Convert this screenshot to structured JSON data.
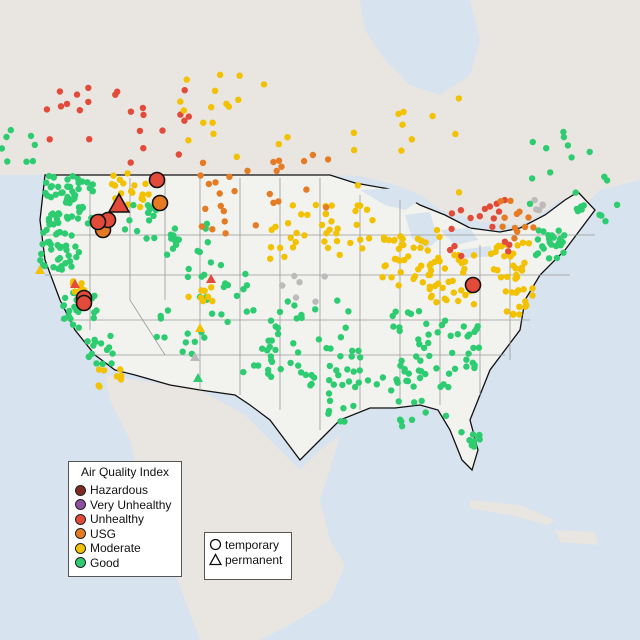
{
  "legend_aqi": {
    "title": "Air Quality Index",
    "items": [
      {
        "label": "Hazardous",
        "color": "#7e2a22"
      },
      {
        "label": "Very Unhealthy",
        "color": "#8e4fa3"
      },
      {
        "label": "Unhealthy",
        "color": "#e24b3a"
      },
      {
        "label": "USG",
        "color": "#e57c23"
      },
      {
        "label": "Moderate",
        "color": "#f2c100"
      },
      {
        "label": "Good",
        "color": "#2ecc71"
      }
    ]
  },
  "legend_monitor": {
    "items": [
      {
        "label": "temporary",
        "shape": "circle"
      },
      {
        "label": "permanent",
        "shape": "triangle"
      }
    ]
  },
  "colors": {
    "ocean": "#d7e3ee",
    "land_us": "#eef0ec",
    "land_other": "#e6e2dd",
    "no_data": "#bbbbbb"
  }
}
